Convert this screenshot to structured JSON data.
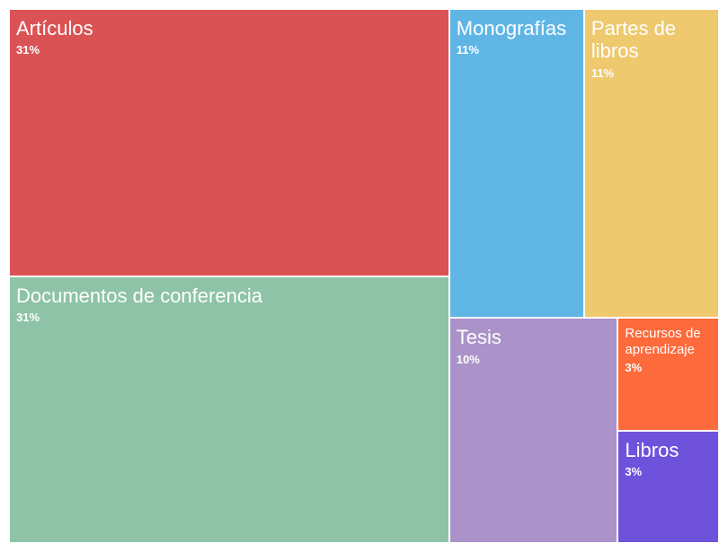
{
  "chart_data": {
    "type": "treemap",
    "categories": [
      "Artículos",
      "Documentos de conferencia",
      "Monografías",
      "Partes de libros",
      "Tesis",
      "Recursos de aprendizaje",
      "Libros"
    ],
    "values": [
      31,
      31,
      11,
      11,
      10,
      3,
      3
    ],
    "value_labels": [
      "31%",
      "31%",
      "11%",
      "11%",
      "10%",
      "3%",
      "3%"
    ],
    "colors": [
      "#db5254",
      "#8ec3a7",
      "#5fb6e5",
      "#eec96e",
      "#ab92c9",
      "#fd6a3b",
      "#6e52dc"
    ]
  }
}
